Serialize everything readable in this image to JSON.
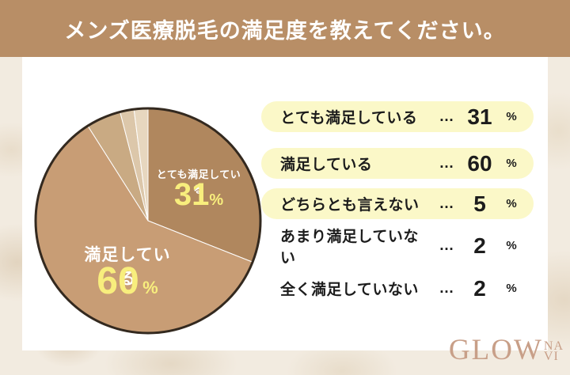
{
  "header": {
    "title": "メンズ医療脱毛の満足度を教えてください。",
    "bg_color": "#b88e66"
  },
  "chart_data": {
    "type": "pie",
    "title": "メンズ医療脱毛の満足度",
    "categories": [
      "とても満足している",
      "満足している",
      "どちらとも言えない",
      "あまり満足していない",
      "全く満足していない"
    ],
    "values": [
      31,
      60,
      5,
      2,
      2
    ],
    "unit": "%",
    "colors": [
      "#b0875e",
      "#c89d75",
      "#c9aa83",
      "#dcc7aa",
      "#e7d7bf"
    ],
    "start_angle_deg": 0,
    "direction": "clockwise",
    "slice_outline": "#ffffff",
    "circle_outline": "#33291f",
    "on_pie_label_color": "#ffffff",
    "on_pie_value_color": "#f8ee7d",
    "legend_position": "right"
  },
  "legend": {
    "highlight_color": "#fbf8c8",
    "rows": [
      {
        "label": "とても満足している",
        "dots": "…",
        "value": "31",
        "unit": "%",
        "highlighted": true
      },
      {
        "label": "満足している",
        "dots": "…",
        "value": "60",
        "unit": "%",
        "highlighted": true
      },
      {
        "label": "どちらとも言えない",
        "dots": "…",
        "value": "5",
        "unit": "%",
        "highlighted": true
      },
      {
        "label": "あまり満足していない",
        "dots": "…",
        "value": "2",
        "unit": "%",
        "highlighted": false
      },
      {
        "label": "全く満足していない",
        "dots": "…",
        "value": "2",
        "unit": "%",
        "highlighted": false
      }
    ]
  },
  "logo": {
    "text_main": "GLOW",
    "text_stack_top": "NA",
    "text_stack_bottom": "VI",
    "color": "#c89f88"
  }
}
